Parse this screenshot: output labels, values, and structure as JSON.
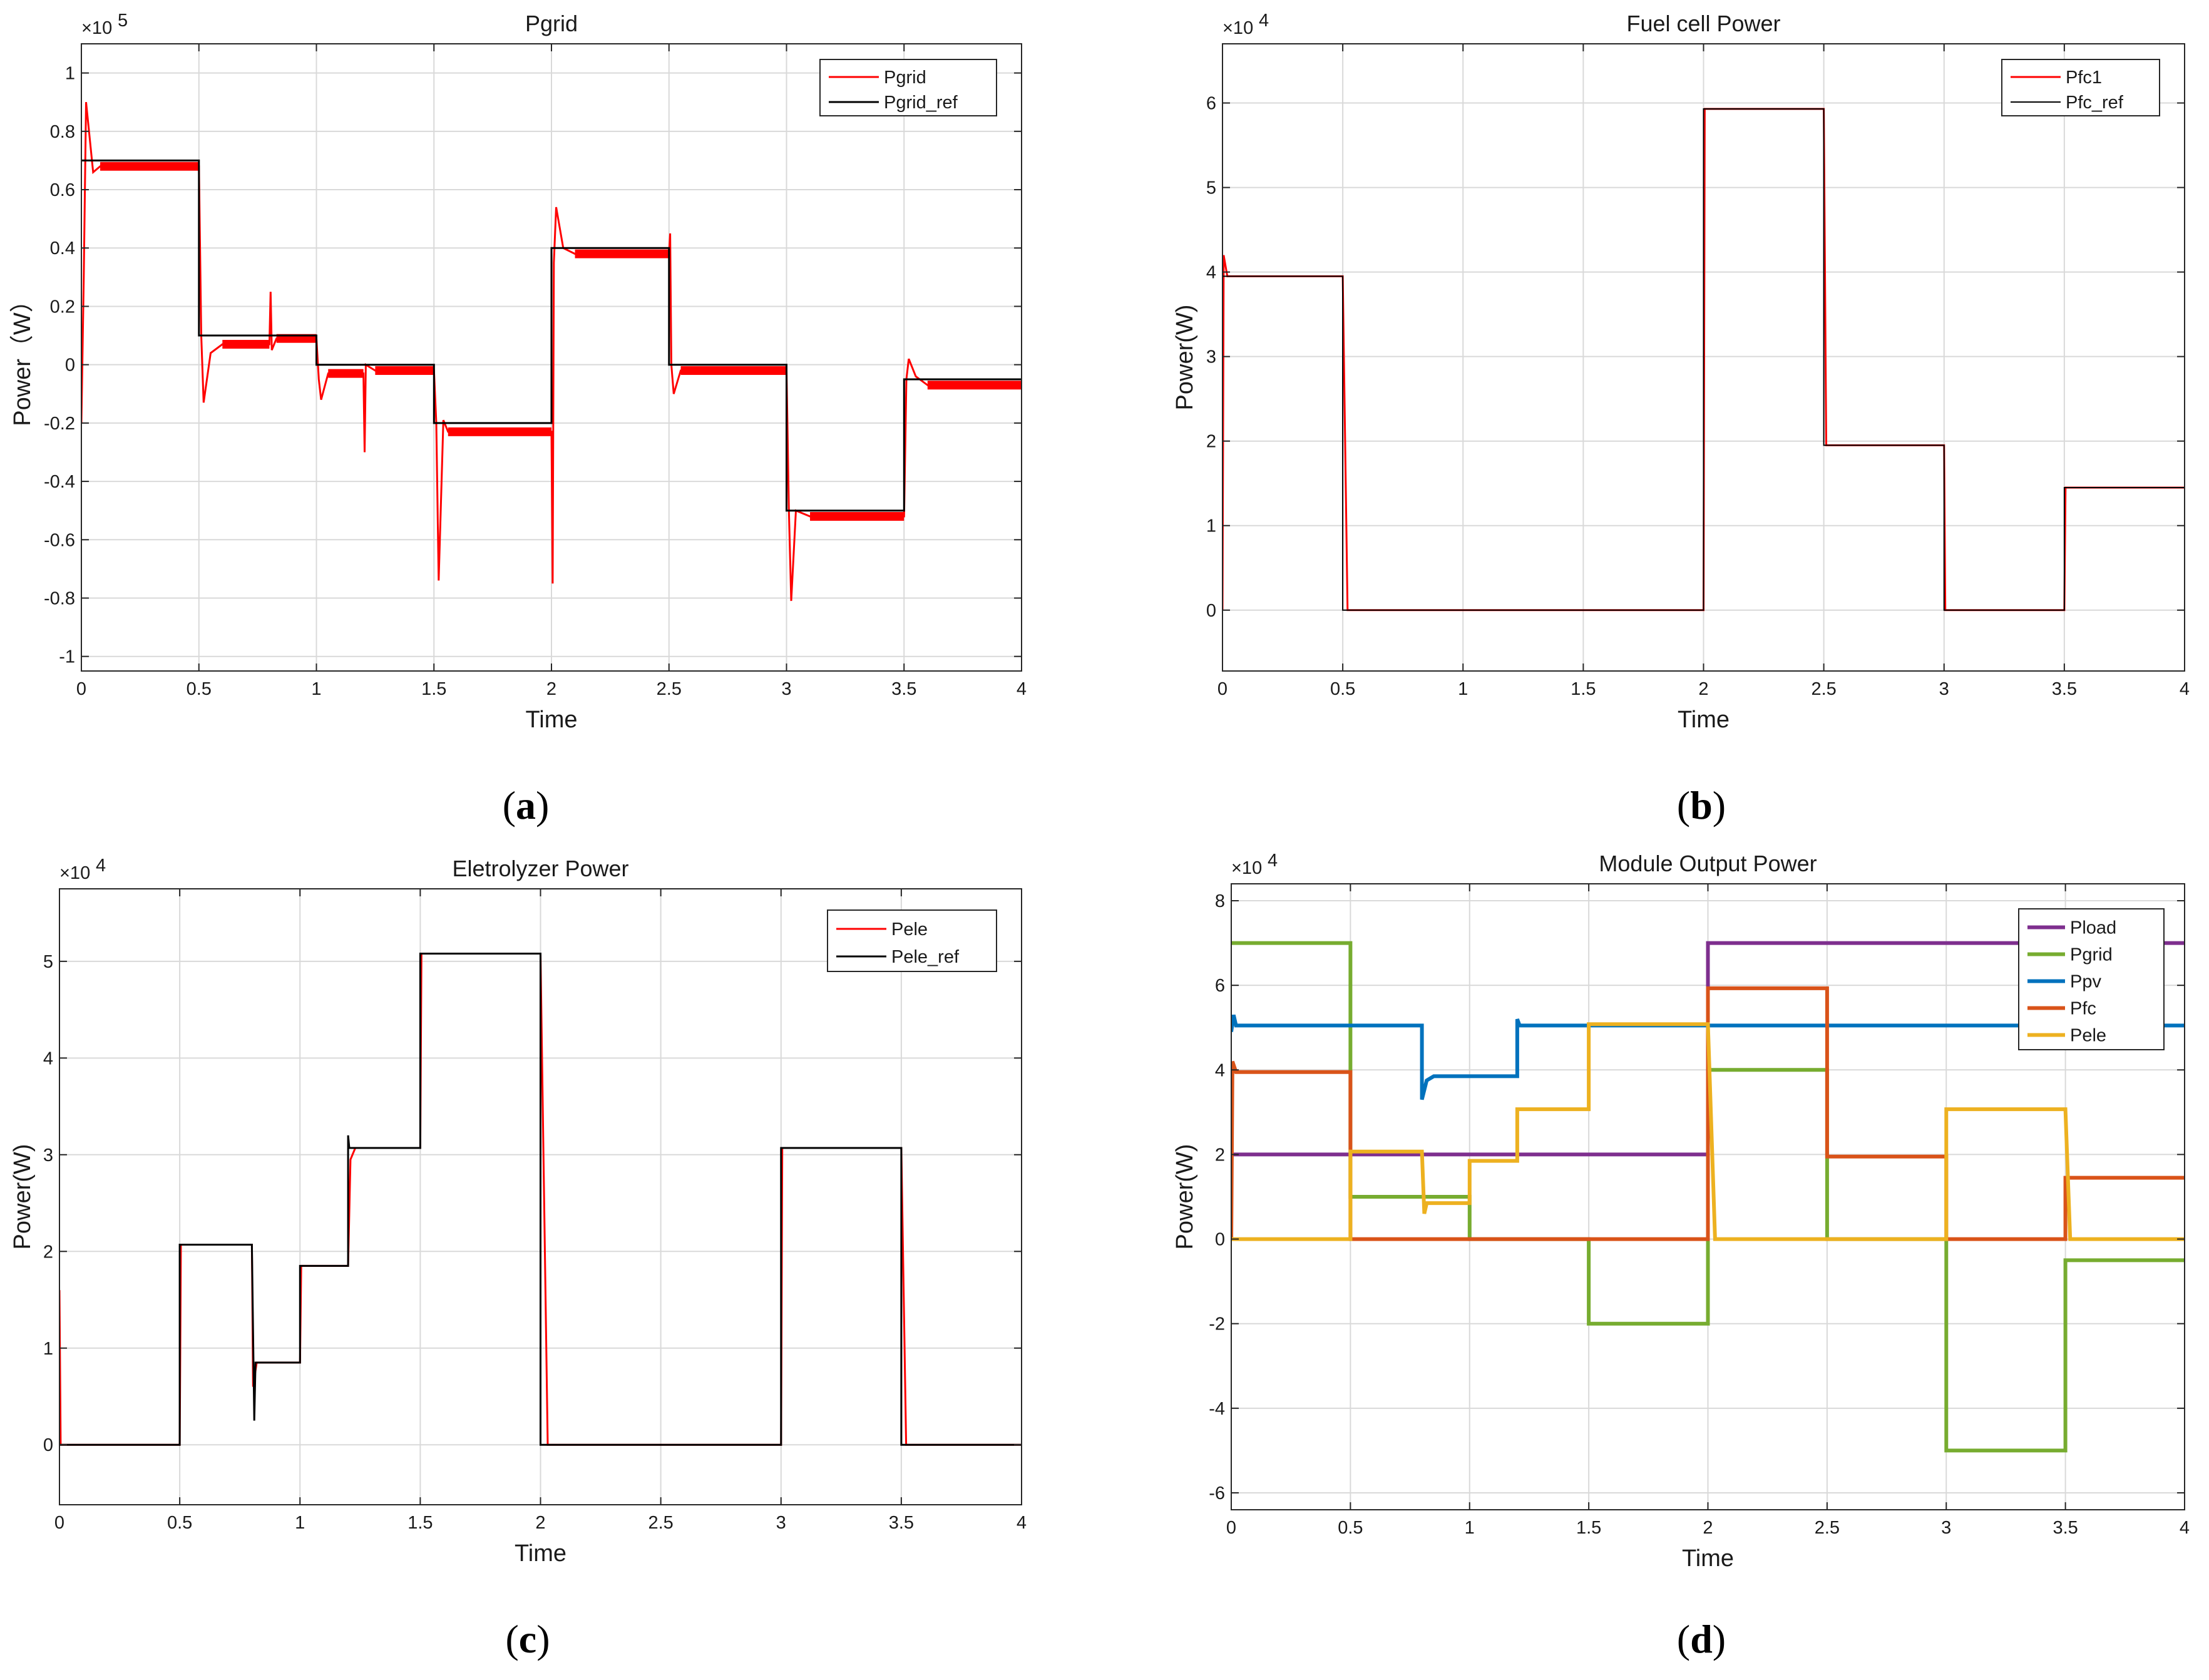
{
  "chart_data": [
    {
      "type": "line",
      "id": "a",
      "title": "Pgrid",
      "xlabel": "Time",
      "ylabel": "Power（W）",
      "multiplier": "×10",
      "multiplier_exp": "5",
      "xlim": [
        0,
        4
      ],
      "ylim": [
        -1.05,
        1.1
      ],
      "xticks": [
        0,
        0.5,
        1,
        1.5,
        2,
        2.5,
        3,
        3.5,
        4
      ],
      "xtick_labels": [
        "0",
        "0.5",
        "1",
        "1.5",
        "2",
        "2.5",
        "3",
        "3.5",
        "4"
      ],
      "yticks": [
        -1,
        -0.8,
        -0.6,
        -0.4,
        -0.2,
        0,
        0.2,
        0.4,
        0.6,
        0.8,
        1
      ],
      "ytick_labels": [
        "-1",
        "-0.8",
        "-0.6",
        "-0.4",
        "-0.2",
        "0",
        "0.2",
        "0.4",
        "0.6",
        "0.8",
        "1"
      ],
      "legend_position": "top-right",
      "panel_label": "a",
      "series": [
        {
          "name": "Pgrid",
          "color": "#ff0000",
          "stroke": 3,
          "band": 0.03,
          "points": [
            [
              0,
              -0.2
            ],
            [
              0.01,
              0.3
            ],
            [
              0.02,
              0.9
            ],
            [
              0.05,
              0.66
            ],
            [
              0.08,
              0.68
            ],
            [
              0.5,
              0.68
            ],
            [
              0.51,
              0.1
            ],
            [
              0.52,
              -0.13
            ],
            [
              0.55,
              0.04
            ],
            [
              0.6,
              0.07
            ],
            [
              0.8,
              0.07
            ],
            [
              0.805,
              0.25
            ],
            [
              0.81,
              0.05
            ],
            [
              0.83,
              0.09
            ],
            [
              1.0,
              0.09
            ],
            [
              1.01,
              -0.05
            ],
            [
              1.02,
              -0.12
            ],
            [
              1.05,
              -0.03
            ],
            [
              1.2,
              -0.03
            ],
            [
              1.205,
              -0.3
            ],
            [
              1.21,
              0.0
            ],
            [
              1.25,
              -0.02
            ],
            [
              1.5,
              -0.02
            ],
            [
              1.51,
              -0.2
            ],
            [
              1.52,
              -0.74
            ],
            [
              1.54,
              -0.19
            ],
            [
              1.56,
              -0.23
            ],
            [
              2.0,
              -0.23
            ],
            [
              2.005,
              -0.75
            ],
            [
              2.01,
              0.35
            ],
            [
              2.02,
              0.54
            ],
            [
              2.05,
              0.4
            ],
            [
              2.1,
              0.38
            ],
            [
              2.5,
              0.38
            ],
            [
              2.505,
              0.45
            ],
            [
              2.51,
              0.0
            ],
            [
              2.52,
              -0.1
            ],
            [
              2.55,
              -0.02
            ],
            [
              3.0,
              -0.02
            ],
            [
              3.01,
              -0.5
            ],
            [
              3.02,
              -0.81
            ],
            [
              3.04,
              -0.5
            ],
            [
              3.1,
              -0.52
            ],
            [
              3.5,
              -0.52
            ],
            [
              3.51,
              -0.05
            ],
            [
              3.52,
              0.02
            ],
            [
              3.55,
              -0.04
            ],
            [
              3.6,
              -0.07
            ],
            [
              4.0,
              -0.07
            ]
          ]
        },
        {
          "name": "Pgrid_ref",
          "color": "#000000",
          "stroke": 3,
          "band": 0,
          "points": [
            [
              0,
              0.7
            ],
            [
              0.5,
              0.7
            ],
            [
              0.5,
              0.1
            ],
            [
              1.0,
              0.1
            ],
            [
              1.0,
              0.0
            ],
            [
              1.5,
              0.0
            ],
            [
              1.5,
              -0.2
            ],
            [
              2.0,
              -0.2
            ],
            [
              2.0,
              0.4
            ],
            [
              2.5,
              0.4
            ],
            [
              2.5,
              0.0
            ],
            [
              3.0,
              0.0
            ],
            [
              3.0,
              -0.5
            ],
            [
              3.5,
              -0.5
            ],
            [
              3.5,
              -0.05
            ],
            [
              4.0,
              -0.05
            ]
          ]
        }
      ]
    },
    {
      "type": "line",
      "id": "b",
      "title": "Fuel cell Power",
      "xlabel": "Time",
      "ylabel": "Power(W)",
      "multiplier": "×10",
      "multiplier_exp": "4",
      "xlim": [
        0,
        4
      ],
      "ylim": [
        -0.72,
        6.7
      ],
      "xticks": [
        0,
        0.5,
        1,
        1.5,
        2,
        2.5,
        3,
        3.5,
        4
      ],
      "xtick_labels": [
        "0",
        "0.5",
        "1",
        "1.5",
        "2",
        "2.5",
        "3",
        "3.5",
        "4"
      ],
      "yticks": [
        0,
        1,
        2,
        3,
        4,
        5,
        6
      ],
      "ytick_labels": [
        "0",
        "1",
        "2",
        "3",
        "4",
        "5",
        "6"
      ],
      "legend_position": "top-right",
      "panel_label": "b",
      "series": [
        {
          "name": "Pfc1",
          "color": "#ff0000",
          "stroke": 3,
          "band": 0,
          "points": [
            [
              0,
              0.0
            ],
            [
              0.005,
              4.2
            ],
            [
              0.02,
              3.95
            ],
            [
              0.5,
              3.95
            ],
            [
              0.52,
              0.0
            ],
            [
              2.0,
              0.0
            ],
            [
              2.005,
              5.93
            ],
            [
              2.5,
              5.93
            ],
            [
              2.51,
              1.95
            ],
            [
              3.0,
              1.95
            ],
            [
              3.005,
              0.0
            ],
            [
              3.5,
              0.0
            ],
            [
              3.505,
              1.45
            ],
            [
              4.0,
              1.45
            ]
          ]
        },
        {
          "name": "Pfc_ref",
          "color": "#000000",
          "stroke": 2,
          "band": 0,
          "points": [
            [
              0,
              3.95
            ],
            [
              0.5,
              3.95
            ],
            [
              0.5,
              0.0
            ],
            [
              2.0,
              0.0
            ],
            [
              2.0,
              5.93
            ],
            [
              2.5,
              5.93
            ],
            [
              2.5,
              1.95
            ],
            [
              3.0,
              1.95
            ],
            [
              3.0,
              0.0
            ],
            [
              3.5,
              0.0
            ],
            [
              3.5,
              1.45
            ],
            [
              4.0,
              1.45
            ]
          ]
        }
      ]
    },
    {
      "type": "line",
      "id": "c",
      "title": "Eletrolyzer Power",
      "xlabel": "Time",
      "ylabel": "Power(W)",
      "multiplier": "×10",
      "multiplier_exp": "4",
      "xlim": [
        0,
        4
      ],
      "ylim": [
        -0.62,
        5.75
      ],
      "xticks": [
        0,
        0.5,
        1,
        1.5,
        2,
        2.5,
        3,
        3.5,
        4
      ],
      "xtick_labels": [
        "0",
        "0.5",
        "1",
        "1.5",
        "2",
        "2.5",
        "3",
        "3.5",
        "4"
      ],
      "yticks": [
        0,
        1,
        2,
        3,
        4,
        5
      ],
      "ytick_labels": [
        "0",
        "1",
        "2",
        "3",
        "4",
        "5"
      ],
      "legend_position": "top-right",
      "panel_label": "c",
      "series": [
        {
          "name": "Pele",
          "color": "#ff0000",
          "stroke": 3,
          "band": 0,
          "points": [
            [
              0,
              1.6
            ],
            [
              0.005,
              0.0
            ],
            [
              0.5,
              0.0
            ],
            [
              0.505,
              2.07
            ],
            [
              0.8,
              2.07
            ],
            [
              0.805,
              0.6
            ],
            [
              0.82,
              0.85
            ],
            [
              1.0,
              0.85
            ],
            [
              1.005,
              1.85
            ],
            [
              1.2,
              1.85
            ],
            [
              1.21,
              2.95
            ],
            [
              1.23,
              3.07
            ],
            [
              1.5,
              3.07
            ],
            [
              1.505,
              5.08
            ],
            [
              2.0,
              5.08
            ],
            [
              2.03,
              0.0
            ],
            [
              3.0,
              0.0
            ],
            [
              3.005,
              3.07
            ],
            [
              3.5,
              3.07
            ],
            [
              3.52,
              0.0
            ],
            [
              4.0,
              0.0
            ]
          ]
        },
        {
          "name": "Pele_ref",
          "color": "#000000",
          "stroke": 3,
          "band": 0,
          "points": [
            [
              0,
              0.0
            ],
            [
              0.5,
              0.0
            ],
            [
              0.5,
              2.07
            ],
            [
              0.8,
              2.07
            ],
            [
              0.81,
              0.25
            ],
            [
              0.815,
              0.85
            ],
            [
              1.0,
              0.85
            ],
            [
              1.0,
              1.85
            ],
            [
              1.2,
              1.85
            ],
            [
              1.2,
              3.2
            ],
            [
              1.205,
              3.07
            ],
            [
              1.5,
              3.07
            ],
            [
              1.5,
              5.08
            ],
            [
              2.0,
              5.08
            ],
            [
              2.0,
              0.0
            ],
            [
              3.0,
              0.0
            ],
            [
              3.0,
              3.07
            ],
            [
              3.5,
              3.07
            ],
            [
              3.5,
              0.0
            ],
            [
              4.0,
              0.0
            ]
          ]
        }
      ]
    },
    {
      "type": "line",
      "id": "d",
      "title": "Module Output Power",
      "xlabel": "Time",
      "ylabel": "Power(W)",
      "multiplier": "×10",
      "multiplier_exp": "4",
      "xlim": [
        0,
        4
      ],
      "ylim": [
        -6.4,
        8.4
      ],
      "xticks": [
        0,
        0.5,
        1,
        1.5,
        2,
        2.5,
        3,
        3.5,
        4
      ],
      "xtick_labels": [
        "0",
        "0.5",
        "1",
        "1.5",
        "2",
        "2.5",
        "3",
        "3.5",
        "4"
      ],
      "yticks": [
        -6,
        -4,
        -2,
        0,
        2,
        4,
        6,
        8
      ],
      "ytick_labels": [
        "-6",
        "-4",
        "-2",
        "0",
        "2",
        "4",
        "6",
        "8"
      ],
      "legend_position": "top-right",
      "panel_label": "d",
      "series": [
        {
          "name": "Pload",
          "color": "#7e2f8e",
          "stroke": 6,
          "band": 0,
          "points": [
            [
              0,
              2.0
            ],
            [
              2.0,
              2.0
            ],
            [
              2.0,
              7.0
            ],
            [
              4.0,
              7.0
            ]
          ]
        },
        {
          "name": "Pgrid",
          "color": "#77ac30",
          "stroke": 6,
          "band": 0,
          "points": [
            [
              0,
              7.0
            ],
            [
              0.5,
              7.0
            ],
            [
              0.5,
              1.0
            ],
            [
              1.0,
              1.0
            ],
            [
              1.0,
              0.0
            ],
            [
              1.5,
              0.0
            ],
            [
              1.5,
              -2.0
            ],
            [
              2.0,
              -2.0
            ],
            [
              2.0,
              4.0
            ],
            [
              2.5,
              4.0
            ],
            [
              2.5,
              0.0
            ],
            [
              3.0,
              0.0
            ],
            [
              3.0,
              -5.0
            ],
            [
              3.5,
              -5.0
            ],
            [
              3.5,
              -0.5
            ],
            [
              4.0,
              -0.5
            ]
          ]
        },
        {
          "name": "Ppv",
          "color": "#0072bd",
          "stroke": 6,
          "band": 0,
          "points": [
            [
              0,
              4.9
            ],
            [
              0.01,
              5.3
            ],
            [
              0.02,
              5.05
            ],
            [
              0.8,
              5.05
            ],
            [
              0.8,
              3.3
            ],
            [
              0.82,
              3.75
            ],
            [
              0.85,
              3.85
            ],
            [
              1.2,
              3.85
            ],
            [
              1.2,
              5.2
            ],
            [
              1.21,
              5.05
            ],
            [
              4.0,
              5.05
            ]
          ]
        },
        {
          "name": "Pfc",
          "color": "#d95319",
          "stroke": 6,
          "band": 0,
          "points": [
            [
              0,
              0.0
            ],
            [
              0.005,
              4.2
            ],
            [
              0.02,
              3.95
            ],
            [
              0.5,
              3.95
            ],
            [
              0.5,
              0.0
            ],
            [
              2.0,
              0.0
            ],
            [
              2.0,
              5.93
            ],
            [
              2.5,
              5.93
            ],
            [
              2.5,
              1.95
            ],
            [
              3.0,
              1.95
            ],
            [
              3.0,
              0.0
            ],
            [
              3.5,
              0.0
            ],
            [
              3.5,
              1.45
            ],
            [
              4.0,
              1.45
            ]
          ]
        },
        {
          "name": "Pele",
          "color": "#edb120",
          "stroke": 6,
          "band": 0,
          "points": [
            [
              0,
              0.0
            ],
            [
              0.5,
              0.0
            ],
            [
              0.5,
              2.07
            ],
            [
              0.8,
              2.07
            ],
            [
              0.81,
              0.6
            ],
            [
              0.82,
              0.85
            ],
            [
              1.0,
              0.85
            ],
            [
              1.0,
              1.85
            ],
            [
              1.2,
              1.85
            ],
            [
              1.2,
              3.07
            ],
            [
              1.5,
              3.07
            ],
            [
              1.5,
              5.08
            ],
            [
              2.0,
              5.08
            ],
            [
              2.03,
              0.0
            ],
            [
              3.0,
              0.0
            ],
            [
              3.0,
              3.07
            ],
            [
              3.5,
              3.07
            ],
            [
              3.52,
              0.0
            ],
            [
              4.0,
              0.0
            ]
          ]
        }
      ]
    }
  ]
}
